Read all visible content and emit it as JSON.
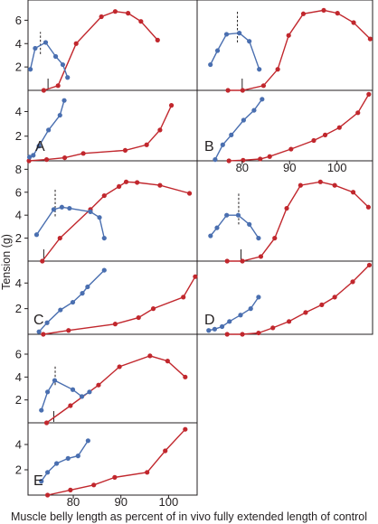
{
  "chart_data": {
    "type": "line",
    "ylabel": "Tension (g)",
    "xlabel": "Muscle belly length as percent of in vivo fully extended length of control",
    "colors": {
      "red": "#c1272d",
      "blue": "#4a6fb0",
      "axis": "#231f20"
    },
    "panels": [
      {
        "label": "A",
        "xlim": [
          70.5,
          106
        ],
        "x_ticks": [],
        "top": {
          "ylim": [
            0,
            7.5
          ],
          "y_ticks": [
            2,
            4,
            6
          ],
          "marker_x": 74.7,
          "red": [
            [
              73.8,
              0
            ],
            [
              76.8,
              0.4
            ],
            [
              80.6,
              4.0
            ],
            [
              85.9,
              6.3
            ],
            [
              88.8,
              6.75
            ],
            [
              91.5,
              6.6
            ],
            [
              94.2,
              5.9
            ],
            [
              97.7,
              4.3
            ]
          ],
          "blue": [
            [
              71.0,
              1.8
            ],
            [
              72.0,
              3.6
            ],
            [
              74.2,
              4.1
            ],
            [
              76.3,
              2.9
            ],
            [
              77.8,
              2.2
            ],
            [
              78.8,
              1.1
            ]
          ],
          "dashed_x": 73.1,
          "dashed_range": [
            3.1,
            5.0
          ]
        },
        "bottom": {
          "ylim": [
            0,
            5.5
          ],
          "y_ticks": [
            2,
            4
          ],
          "red": [
            [
              70.7,
              0
            ],
            [
              74.4,
              0.1
            ],
            [
              78.2,
              0.25
            ],
            [
              82.1,
              0.6
            ],
            [
              90.9,
              0.85
            ],
            [
              95.4,
              1.3
            ],
            [
              98.2,
              2.5
            ],
            [
              100.6,
              4.5
            ]
          ],
          "blue": [
            [
              70.8,
              0.3
            ],
            [
              71.6,
              0.45
            ],
            [
              72.8,
              1.2
            ],
            [
              74.8,
              2.5
            ],
            [
              77.2,
              3.7
            ],
            [
              78.1,
              4.9
            ]
          ]
        }
      },
      {
        "label": "B",
        "xlim": [
          70.5,
          107.5
        ],
        "x_ticks": [
          80,
          90,
          100
        ],
        "top": {
          "ylim": [
            0,
            7.5
          ],
          "y_ticks": [],
          "marker_x": 80.0,
          "red": [
            [
              77.0,
              0
            ],
            [
              80.1,
              0
            ],
            [
              84.5,
              0.4
            ],
            [
              87.5,
              1.8
            ],
            [
              89.8,
              4.7
            ],
            [
              92.9,
              6.55
            ],
            [
              97.2,
              6.85
            ],
            [
              100.1,
              6.6
            ],
            [
              103.5,
              5.8
            ],
            [
              107.0,
              4.4
            ]
          ],
          "blue": [
            [
              73.3,
              2.2
            ],
            [
              74.8,
              3.4
            ],
            [
              76.7,
              4.8
            ],
            [
              79.4,
              4.9
            ],
            [
              81.5,
              4.2
            ],
            [
              83.6,
              1.8
            ]
          ],
          "dashed_x": 79.0,
          "dashed_range": [
            4.1,
            6.8
          ]
        },
        "bottom": {
          "ylim": [
            0,
            5.5
          ],
          "y_ticks": [],
          "red": [
            [
              77.2,
              0
            ],
            [
              80.2,
              0.05
            ],
            [
              83.8,
              0.15
            ],
            [
              85.8,
              0.35
            ],
            [
              90.3,
              0.95
            ],
            [
              95.1,
              1.65
            ],
            [
              97.5,
              2.1
            ],
            [
              100.5,
              2.7
            ],
            [
              104.4,
              3.9
            ],
            [
              106.7,
              5.4
            ]
          ],
          "blue": [
            [
              74.3,
              0.1
            ],
            [
              75.9,
              1.3
            ],
            [
              77.7,
              2.1
            ],
            [
              80.3,
              3.3
            ],
            [
              82.5,
              4.1
            ],
            [
              84.2,
              5.0
            ]
          ]
        }
      },
      {
        "label": "C",
        "xlim": [
          70.5,
          106
        ],
        "x_ticks": [],
        "top": {
          "ylim": [
            0,
            8.5
          ],
          "y_ticks": [
            2,
            4,
            6,
            8
          ],
          "marker_x": 73.8,
          "red": [
            [
              73.5,
              0
            ],
            [
              77.2,
              2.0
            ],
            [
              83.6,
              4.5
            ],
            [
              86.5,
              5.7
            ],
            [
              89.6,
              6.5
            ],
            [
              91.1,
              6.9
            ],
            [
              93.4,
              6.85
            ],
            [
              98.2,
              6.6
            ],
            [
              104.4,
              5.9
            ]
          ],
          "blue": [
            [
              72.3,
              2.3
            ],
            [
              75.9,
              4.5
            ],
            [
              77.6,
              4.7
            ],
            [
              79.2,
              4.6
            ],
            [
              83.6,
              4.3
            ],
            [
              85.5,
              3.8
            ],
            [
              86.5,
              2.0
            ]
          ],
          "dashed_x": 76.2,
          "dashed_range": [
            3.9,
            6.3
          ]
        },
        "bottom": {
          "ylim": [
            0,
            5.5
          ],
          "y_ticks": [
            2,
            4
          ],
          "red": [
            [
              73.7,
              0
            ],
            [
              79.0,
              0.3
            ],
            [
              88.8,
              0.8
            ],
            [
              93.7,
              1.3
            ],
            [
              96.8,
              2.0
            ],
            [
              103.1,
              2.9
            ],
            [
              105.6,
              4.5
            ]
          ],
          "blue": [
            [
              72.8,
              0.2
            ],
            [
              74.5,
              0.9
            ],
            [
              77.3,
              1.9
            ],
            [
              79.9,
              2.5
            ],
            [
              81.9,
              3.2
            ],
            [
              83.0,
              3.7
            ],
            [
              86.5,
              5.0
            ]
          ]
        }
      },
      {
        "label": "D",
        "xlim": [
          70.5,
          108.5
        ],
        "x_ticks": [],
        "top": {
          "ylim": [
            0,
            8.5
          ],
          "y_ticks": [],
          "marker_x": 80.0,
          "red": [
            [
              77.0,
              0
            ],
            [
              80.3,
              0
            ],
            [
              84.3,
              0.4
            ],
            [
              87.3,
              2.0
            ],
            [
              89.9,
              4.6
            ],
            [
              92.9,
              6.6
            ],
            [
              97.2,
              6.9
            ],
            [
              100.3,
              6.6
            ],
            [
              104.3,
              6.0
            ],
            [
              107.6,
              4.7
            ]
          ],
          "blue": [
            [
              73.4,
              2.2
            ],
            [
              74.8,
              2.9
            ],
            [
              76.9,
              4.0
            ],
            [
              79.4,
              4.0
            ],
            [
              81.8,
              3.2
            ],
            [
              83.8,
              2.0
            ]
          ],
          "dashed_x": 79.5,
          "dashed_range": [
            3.2,
            6.0
          ]
        },
        "bottom": {
          "ylim": [
            0,
            5.5
          ],
          "y_ticks": [],
          "red": [
            [
              77.0,
              0
            ],
            [
              80.3,
              0
            ],
            [
              83.8,
              0.1
            ],
            [
              86.9,
              0.5
            ],
            [
              90.4,
              1.0
            ],
            [
              94.0,
              1.7
            ],
            [
              97.5,
              2.3
            ],
            [
              100.3,
              2.9
            ],
            [
              104.2,
              4.1
            ],
            [
              107.8,
              5.4
            ]
          ],
          "blue": [
            [
              73.0,
              0.3
            ],
            [
              74.3,
              0.4
            ],
            [
              75.9,
              0.6
            ],
            [
              77.5,
              1.0
            ],
            [
              79.9,
              1.5
            ],
            [
              82.1,
              2.0
            ],
            [
              83.8,
              2.9
            ]
          ]
        }
      },
      {
        "label": "E",
        "xlim": [
          70.5,
          106
        ],
        "x_ticks": [
          80,
          90,
          100
        ],
        "top": {
          "ylim": [
            0,
            7.5
          ],
          "y_ticks": [
            2,
            4,
            6
          ],
          "marker_x": 75.9,
          "red": [
            [
              74.4,
              0
            ],
            [
              79.4,
              1.5
            ],
            [
              85.3,
              3.3
            ],
            [
              89.7,
              4.9
            ],
            [
              96.1,
              5.85
            ],
            [
              99.8,
              5.4
            ],
            [
              103.5,
              4.0
            ]
          ],
          "blue": [
            [
              73.3,
              1.1
            ],
            [
              74.6,
              2.7
            ],
            [
              76.1,
              3.7
            ],
            [
              79.9,
              2.9
            ],
            [
              81.8,
              2.3
            ],
            [
              83.4,
              2.7
            ]
          ],
          "dashed_x": 76.2,
          "dashed_range": [
            3.3,
            5.0
          ]
        },
        "bottom": {
          "ylim": [
            0,
            5.5
          ],
          "y_ticks": [
            2,
            4
          ],
          "red": [
            [
              74.6,
              0
            ],
            [
              79.4,
              0.4
            ],
            [
              84.3,
              0.8
            ],
            [
              88.7,
              1.4
            ],
            [
              95.5,
              1.8
            ],
            [
              99.3,
              3.5
            ],
            [
              103.5,
              5.2
            ]
          ],
          "blue": [
            [
              73.3,
              1.1
            ],
            [
              74.6,
              1.8
            ],
            [
              76.5,
              2.5
            ],
            [
              78.9,
              2.9
            ],
            [
              81.0,
              3.1
            ],
            [
              83.1,
              4.3
            ]
          ]
        }
      }
    ]
  }
}
